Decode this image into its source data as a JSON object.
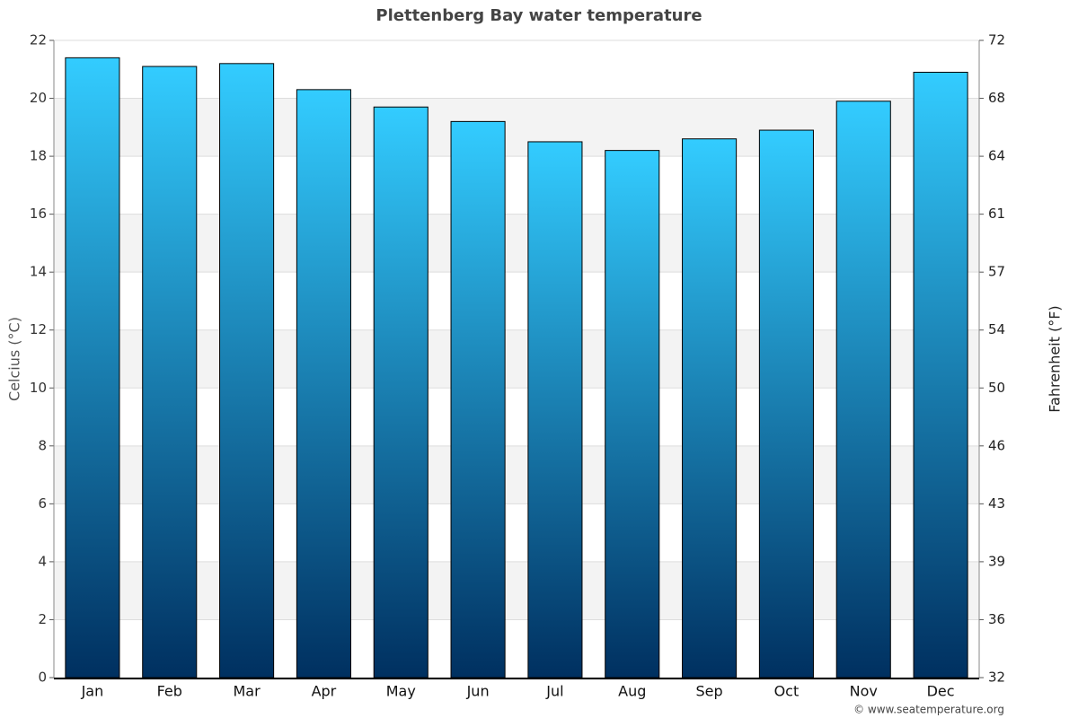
{
  "chart_data": {
    "type": "bar",
    "title": "Plettenberg Bay water temperature",
    "categories": [
      "Jan",
      "Feb",
      "Mar",
      "Apr",
      "May",
      "Jun",
      "Jul",
      "Aug",
      "Sep",
      "Oct",
      "Nov",
      "Dec"
    ],
    "values": [
      21.4,
      21.1,
      21.2,
      20.3,
      19.7,
      19.2,
      18.5,
      18.2,
      18.6,
      18.9,
      19.9,
      20.9
    ],
    "color": [
      "#33ccff",
      "#003060"
    ],
    "ylabel": "Celcius (°C)",
    "y2label": "Fahrenheit (°F)",
    "ylim": [
      0,
      22
    ],
    "yticks": [
      0,
      2,
      4,
      6,
      8,
      10,
      12,
      14,
      16,
      18,
      20,
      22
    ],
    "y2lim": [
      32,
      71.6
    ],
    "y2ticks": [
      32,
      {
        "value": 35.6,
        "label": "36"
      },
      {
        "value": 39.2,
        "label": "39"
      },
      {
        "value": 42.8,
        "label": "43"
      },
      {
        "value": 46.4,
        "label": "46"
      },
      50,
      {
        "value": 53.6,
        "label": "54"
      },
      {
        "value": 57.2,
        "label": "57"
      },
      {
        "value": 60.8,
        "label": "61"
      },
      {
        "value": 64.4,
        "label": "64"
      },
      68,
      {
        "value": 71.6,
        "label": "72"
      }
    ],
    "grid": true,
    "credit": "© www.seatemperature.org"
  }
}
